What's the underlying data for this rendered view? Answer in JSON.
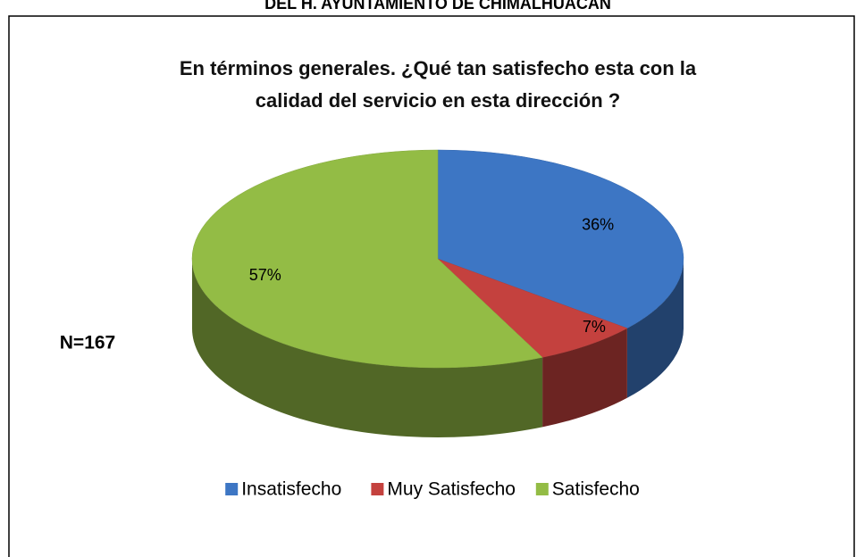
{
  "header": "DEL H. AYUNTAMIENTO DE CHIMALHUACAN",
  "chart_data": {
    "type": "pie",
    "title": "En términos generales. ¿Qué tan satisfecho esta con la calidad del servicio en esta dirección ?",
    "annotation": "N=167",
    "categories": [
      "Insatisfecho",
      "Muy Satisfecho",
      "Satisfecho"
    ],
    "values": [
      36,
      7,
      57
    ],
    "value_labels": [
      "36%",
      "7%",
      "57%"
    ],
    "colors": [
      "#3d76c4",
      "#c4413e",
      "#93bc45"
    ],
    "legend": "bottom"
  }
}
